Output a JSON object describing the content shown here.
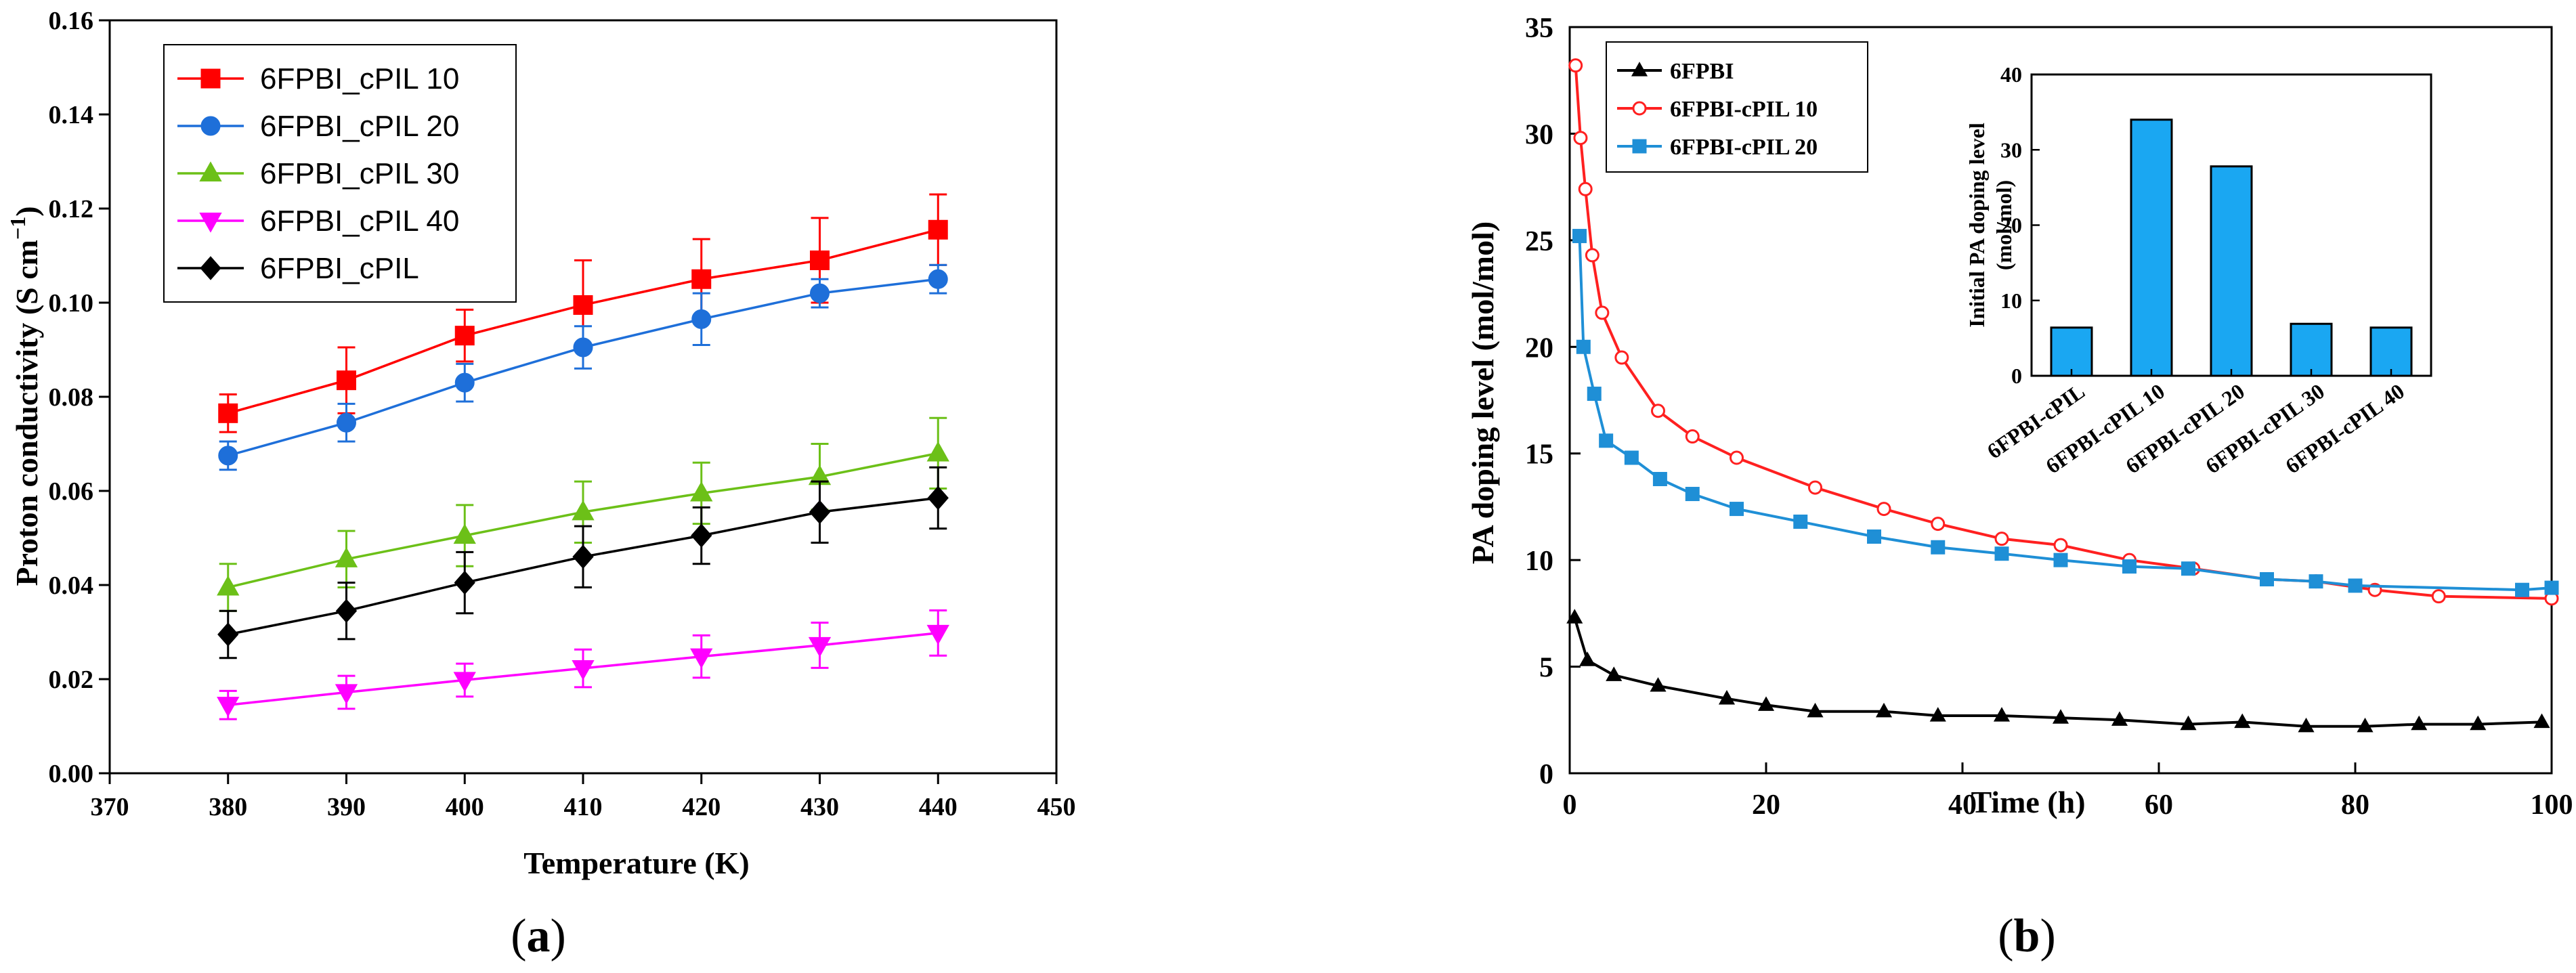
{
  "chart_data": [
    {
      "type": "line",
      "panel": "a",
      "caption_letter": "a",
      "xlabel": "Temperature (K)",
      "ylabel_main": "Proton conductivity (S cm",
      "ylabel_sup": "−1",
      "ylabel_close": ")",
      "xlim": [
        370,
        450
      ],
      "ylim": [
        0,
        0.16
      ],
      "xticks": [
        "370",
        "380",
        "390",
        "400",
        "410",
        "420",
        "430",
        "440",
        "450"
      ],
      "yticks": [
        "0.00",
        "0.02",
        "0.04",
        "0.06",
        "0.08",
        "0.10",
        "0.12",
        "0.14",
        "0.16"
      ],
      "legend_position": "top-left",
      "x": [
        380,
        390,
        400,
        410,
        420,
        430,
        440
      ],
      "series": [
        {
          "name": "6FPBI_cPIL 10",
          "color": "#ff0000",
          "marker": "square",
          "values": [
            0.0765,
            0.0835,
            0.093,
            0.0995,
            0.105,
            0.109,
            0.1155
          ],
          "errors": [
            0.004,
            0.007,
            0.0055,
            0.0095,
            0.0085,
            0.009,
            0.0075
          ]
        },
        {
          "name": "6FPBI_cPIL 20",
          "color": "#1e6fd9",
          "marker": "circle",
          "values": [
            0.0675,
            0.0745,
            0.083,
            0.0905,
            0.0965,
            0.102,
            0.105
          ],
          "errors": [
            0.003,
            0.004,
            0.004,
            0.0045,
            0.0055,
            0.003,
            0.003
          ]
        },
        {
          "name": "6FPBI_cPIL 30",
          "color": "#6cc018",
          "marker": "triangle-up",
          "values": [
            0.0395,
            0.0455,
            0.0505,
            0.0555,
            0.0595,
            0.063,
            0.068
          ],
          "errors": [
            0.005,
            0.006,
            0.0065,
            0.0065,
            0.0065,
            0.007,
            0.0075
          ]
        },
        {
          "name": "6FPBI_cPIL 40",
          "color": "#ff00ff",
          "marker": "triangle-down",
          "values": [
            0.0145,
            0.0172,
            0.0198,
            0.0223,
            0.0248,
            0.0272,
            0.0298
          ],
          "errors": [
            0.003,
            0.0035,
            0.0035,
            0.004,
            0.0045,
            0.0048,
            0.0048
          ]
        },
        {
          "name": "6FPBI_cPIL",
          "color": "#000000",
          "marker": "diamond",
          "values": [
            0.0295,
            0.0345,
            0.0405,
            0.046,
            0.0505,
            0.0555,
            0.0585
          ],
          "errors": [
            0.005,
            0.006,
            0.0065,
            0.0065,
            0.006,
            0.0065,
            0.0065
          ]
        }
      ]
    },
    {
      "type": "line",
      "panel": "b",
      "caption_letter": "b",
      "xlabel": "Time (h)",
      "ylabel": "PA doping level (mol/mol)",
      "xlim": [
        0,
        100
      ],
      "ylim": [
        0,
        35
      ],
      "xticks": [
        "0",
        "20",
        "40",
        "60",
        "80",
        "100"
      ],
      "yticks": [
        "0",
        "5",
        "10",
        "15",
        "20",
        "25",
        "30",
        "35"
      ],
      "legend_position": "top-left",
      "series": [
        {
          "name": "6FPBI",
          "color": "#000000",
          "marker": "triangle-up",
          "x": [
            0.5,
            1.8,
            4.5,
            9,
            16,
            20,
            25,
            32,
            37.5,
            44,
            50,
            56,
            63,
            68.5,
            75,
            81,
            86.5,
            92.5,
            99
          ],
          "values": [
            7.3,
            5.3,
            4.6,
            4.1,
            3.5,
            3.2,
            2.9,
            2.9,
            2.7,
            2.7,
            2.6,
            2.5,
            2.3,
            2.4,
            2.2,
            2.2,
            2.3,
            2.3,
            2.4
          ]
        },
        {
          "name": "6FPBI-cPIL 10",
          "color": "#ff2020",
          "marker": "circle",
          "x": [
            0.6,
            1.1,
            1.6,
            2.3,
            3.3,
            5.3,
            9,
            12.5,
            17,
            25,
            32,
            37.5,
            44,
            50,
            57,
            63.5,
            71,
            76,
            82,
            88.5,
            100
          ],
          "values": [
            33.2,
            29.8,
            27.4,
            24.3,
            21.6,
            19.5,
            17.0,
            15.8,
            14.8,
            13.4,
            12.4,
            11.7,
            11.0,
            10.7,
            10.0,
            9.6,
            9.1,
            9.0,
            8.6,
            8.3,
            8.2
          ]
        },
        {
          "name": "6FPBI-cPIL 20",
          "color": "#1f8fd6",
          "marker": "square",
          "x": [
            1.0,
            1.4,
            2.5,
            3.7,
            6.3,
            9.2,
            12.5,
            17,
            23.5,
            31,
            37.5,
            44,
            50,
            57,
            63,
            71,
            76,
            80,
            97,
            100
          ],
          "values": [
            25.2,
            20.0,
            17.8,
            15.6,
            14.8,
            13.8,
            13.1,
            12.4,
            11.8,
            11.1,
            10.6,
            10.3,
            10.0,
            9.7,
            9.6,
            9.1,
            9.0,
            8.8,
            8.6,
            8.7
          ]
        }
      ],
      "inset": {
        "type": "bar",
        "ylabel_line1": "Initial PA doping level",
        "ylabel_line2": "(mol/mol)",
        "ylim": [
          0,
          40
        ],
        "yticks": [
          "0",
          "10",
          "20",
          "30",
          "40"
        ],
        "bar_color": "#1aa7f2",
        "categories": [
          "6FPBI-cPIL",
          "6FPBI-cPIL 10",
          "6FPBI-cPIL 20",
          "6FPBI-cPIL 30",
          "6FPBI-cPIL 40"
        ],
        "values": [
          6.4,
          34.0,
          27.8,
          6.9,
          6.4
        ]
      }
    }
  ]
}
